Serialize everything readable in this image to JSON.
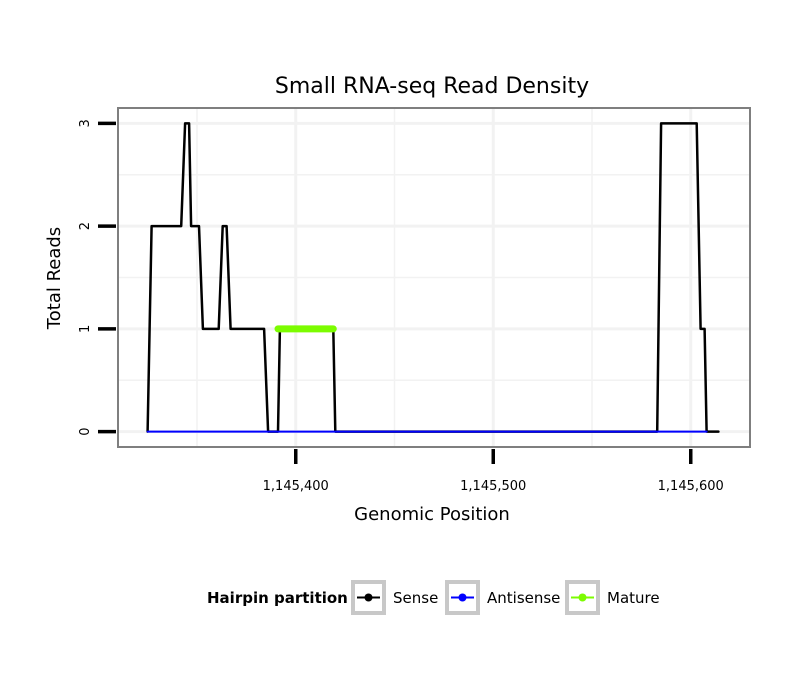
{
  "chart_data": {
    "type": "line",
    "title": "Small RNA-seq Read Density",
    "xlabel": "Genomic Position",
    "ylabel": "Total Reads",
    "xlim": [
      1145310,
      1145630
    ],
    "ylim": [
      -0.15,
      3.15
    ],
    "x_ticks": [
      1145400,
      1145500,
      1145600
    ],
    "x_tick_labels": [
      "1,145,400",
      "1,145,500",
      "1,145,600"
    ],
    "y_ticks": [
      0,
      1,
      2,
      3
    ],
    "y_tick_labels": [
      "0",
      "1",
      "2",
      "3"
    ],
    "legend": {
      "title": "Hairpin partition",
      "position": "bottom",
      "entries": [
        {
          "label": "Sense",
          "color": "#000000"
        },
        {
          "label": "Antisense",
          "color": "#0000ff"
        },
        {
          "label": "Mature",
          "color": "#7cfc00"
        }
      ]
    },
    "series": [
      {
        "name": "Sense",
        "color": "#000000",
        "points": [
          [
            1145325,
            0
          ],
          [
            1145327,
            2
          ],
          [
            1145342,
            2
          ],
          [
            1145344,
            3
          ],
          [
            1145346,
            3
          ],
          [
            1145347,
            2
          ],
          [
            1145351,
            2
          ],
          [
            1145353,
            1
          ],
          [
            1145361,
            1
          ],
          [
            1145363,
            2
          ],
          [
            1145365,
            2
          ],
          [
            1145367,
            1
          ],
          [
            1145384,
            1
          ],
          [
            1145386,
            0
          ],
          [
            1145391,
            0
          ],
          [
            1145392,
            1
          ],
          [
            1145419,
            1
          ],
          [
            1145420,
            0
          ],
          [
            1145583,
            0
          ],
          [
            1145585,
            3
          ],
          [
            1145603,
            3
          ],
          [
            1145605,
            1
          ],
          [
            1145607,
            1
          ],
          [
            1145608,
            0
          ],
          [
            1145614,
            0
          ]
        ]
      },
      {
        "name": "Antisense",
        "color": "#0000ff",
        "points": [
          [
            1145325,
            0
          ],
          [
            1145608,
            0
          ]
        ]
      },
      {
        "name": "Mature",
        "color": "#7cfc00",
        "points": [
          [
            1145391,
            1
          ],
          [
            1145419,
            1
          ]
        ]
      }
    ]
  }
}
